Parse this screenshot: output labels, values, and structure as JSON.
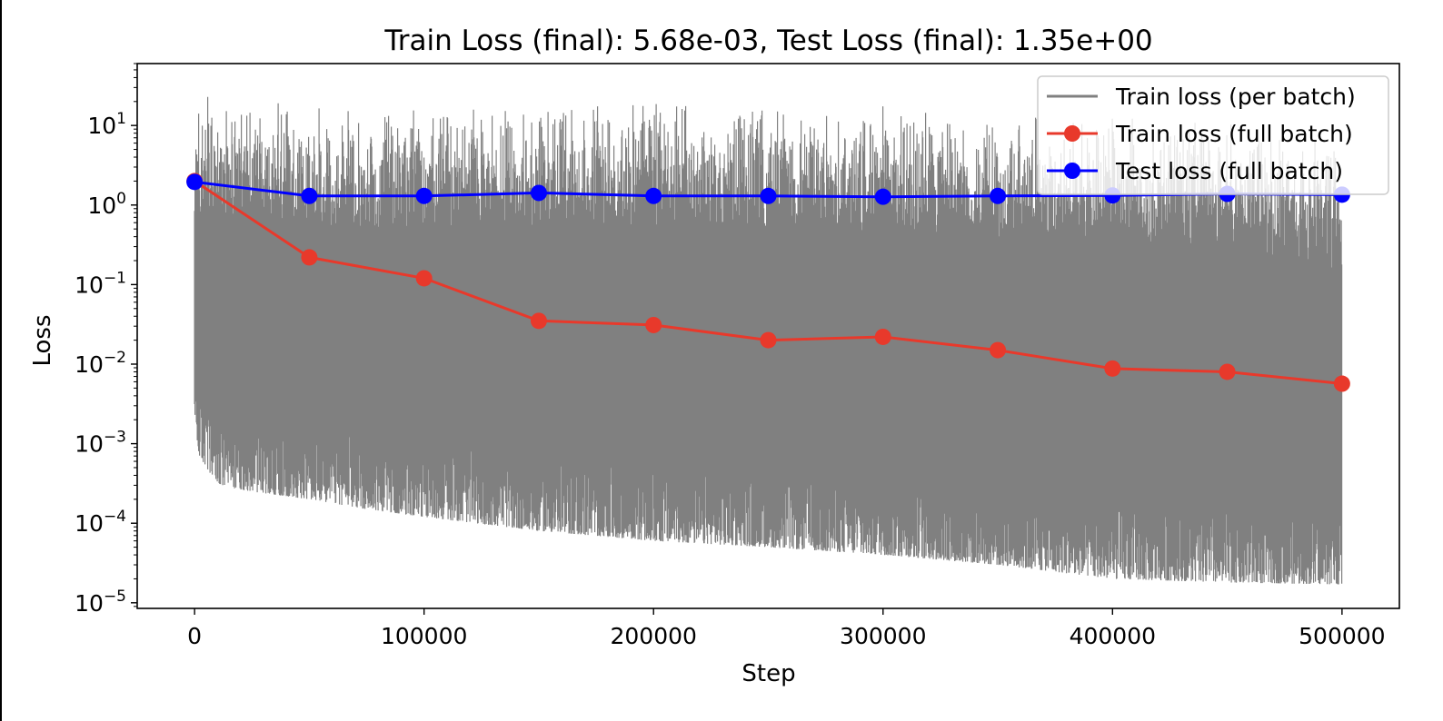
{
  "chart_data": {
    "type": "line",
    "title": "Train Loss (final): 5.68e-03, Test Loss (final): 1.35e+00",
    "xlabel": "Step",
    "ylabel": "Loss",
    "xscale": "linear",
    "yscale": "log",
    "xlim": [
      -25000,
      525000
    ],
    "ylim": [
      8.5e-06,
      60
    ],
    "xticks": [
      0,
      100000,
      200000,
      300000,
      400000,
      500000
    ],
    "xtick_labels": [
      "0",
      "100000",
      "200000",
      "300000",
      "400000",
      "500000"
    ],
    "yticks": [
      1e-05,
      0.0001,
      0.001,
      0.01,
      0.1,
      1,
      10
    ],
    "ytick_labels": [
      {
        "base": "10",
        "exp": "−5"
      },
      {
        "base": "10",
        "exp": "−4"
      },
      {
        "base": "10",
        "exp": "−3"
      },
      {
        "base": "10",
        "exp": "−2"
      },
      {
        "base": "10",
        "exp": "−1"
      },
      {
        "base": "10",
        "exp": "0"
      },
      {
        "base": "10",
        "exp": "1"
      }
    ],
    "grid": false,
    "legend_position": "upper right",
    "series": [
      {
        "name": "Train loss (per batch)",
        "color": "#808080",
        "marker": "none",
        "style": "noisy per-step band",
        "x": [
          0,
          2000,
          10000,
          25000,
          50000,
          75000,
          100000,
          150000,
          200000,
          250000,
          300000,
          350000,
          400000,
          450000,
          500000
        ],
        "upper": [
          30,
          28,
          25,
          22,
          20,
          20,
          20,
          20,
          22,
          20,
          18,
          15,
          14,
          12,
          6
        ],
        "lower": [
          0.002,
          0.0007,
          0.0003,
          0.00025,
          0.0002,
          0.00015,
          0.00012,
          8e-05,
          6e-05,
          5e-05,
          4e-05,
          3e-05,
          2e-05,
          1.8e-05,
          1.7e-05
        ]
      },
      {
        "name": "Train loss (full batch)",
        "color": "#e8392b",
        "marker": "circle",
        "x": [
          0,
          50000,
          100000,
          150000,
          200000,
          250000,
          300000,
          350000,
          400000,
          450000,
          500000
        ],
        "values": [
          2.0,
          0.22,
          0.12,
          0.035,
          0.031,
          0.02,
          0.022,
          0.015,
          0.0088,
          0.008,
          0.00568
        ]
      },
      {
        "name": "Test loss (full batch)",
        "color": "#0000ff",
        "marker": "circle",
        "x": [
          0,
          50000,
          100000,
          150000,
          200000,
          250000,
          300000,
          350000,
          400000,
          450000,
          500000
        ],
        "values": [
          1.95,
          1.3,
          1.3,
          1.42,
          1.3,
          1.3,
          1.27,
          1.3,
          1.32,
          1.38,
          1.35
        ]
      }
    ]
  }
}
